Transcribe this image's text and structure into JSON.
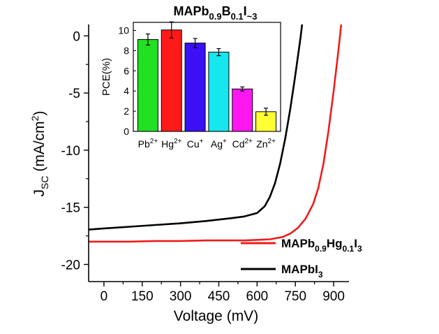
{
  "chart_data": [
    {
      "type": "line",
      "title": "",
      "xlabel": "Voltage (mV)",
      "ylabel_main": "J",
      "ylabel_sub": "SC",
      "ylabel_unit": "(mA/cm",
      "ylabel_unit_sup": "2",
      "ylabel_unit_end": ")",
      "xlim": [
        -60,
        960
      ],
      "ylim": [
        -21.5,
        1
      ],
      "xticks": [
        0,
        150,
        300,
        450,
        600,
        750,
        900
      ],
      "yticks": [
        0,
        -5,
        -10,
        -15,
        -20
      ],
      "legend_position": "bottom-right",
      "series": [
        {
          "name_parts": [
            {
              "t": "MAPb",
              "sub": false
            },
            {
              "t": "0.9",
              "sub": true
            },
            {
              "t": "Hg",
              "sub": false
            },
            {
              "t": "0.1",
              "sub": true
            },
            {
              "t": "I",
              "sub": false
            },
            {
              "t": "3",
              "sub": true
            }
          ],
          "color": "#ee1c1c",
          "x": [
            -60,
            0,
            100,
            200,
            300,
            400,
            500,
            550,
            600,
            650,
            700,
            730,
            760,
            790,
            820,
            840,
            860,
            880,
            900,
            920,
            940
          ],
          "y": [
            -18.0,
            -18.0,
            -18.0,
            -17.95,
            -17.95,
            -17.9,
            -17.9,
            -17.9,
            -17.85,
            -17.8,
            -17.6,
            -17.3,
            -16.8,
            -16.0,
            -14.7,
            -13.3,
            -11.2,
            -8.3,
            -4.8,
            -1.0,
            3.2
          ]
        },
        {
          "name_parts": [
            {
              "t": "MAPbI",
              "sub": false
            },
            {
              "t": "3",
              "sub": true
            }
          ],
          "color": "#000000",
          "x": [
            -60,
            0,
            100,
            200,
            300,
            400,
            500,
            550,
            600,
            630,
            650,
            670,
            690,
            710,
            730,
            750,
            770,
            790,
            800
          ],
          "y": [
            -16.95,
            -16.85,
            -16.7,
            -16.55,
            -16.4,
            -16.2,
            -15.95,
            -15.8,
            -15.5,
            -14.9,
            -14.1,
            -12.9,
            -11.2,
            -9.0,
            -6.4,
            -3.4,
            -0.2,
            3.5,
            5.5
          ]
        }
      ]
    },
    {
      "type": "bar",
      "title_parts": [
        {
          "t": "MAPb",
          "sub": false
        },
        {
          "t": "0.9",
          "sub": true
        },
        {
          "t": "B",
          "sub": false
        },
        {
          "t": "0.1",
          "sub": true
        },
        {
          "t": "I",
          "sub": false
        },
        {
          "t": "~3",
          "sub": true
        }
      ],
      "ylabel": "PCE(%)",
      "ylim": [
        0,
        10.8
      ],
      "yticks": [
        0,
        2,
        4,
        6,
        8,
        10
      ],
      "categories": [
        {
          "base": "Pb",
          "sup": "2+"
        },
        {
          "base": "Hg",
          "sup": "2+"
        },
        {
          "base": "Cu",
          "sup": "+"
        },
        {
          "base": "Ag",
          "sup": "+"
        },
        {
          "base": "Cd",
          "sup": "2+"
        },
        {
          "base": "Zn",
          "sup": "2+"
        }
      ],
      "values": [
        9.1,
        10.05,
        8.75,
        7.85,
        4.2,
        1.95
      ],
      "errors": [
        0.55,
        0.8,
        0.45,
        0.35,
        0.2,
        0.35
      ],
      "colors": [
        "#22e022",
        "#ff1a1a",
        "#3b10f5",
        "#16e6ee",
        "#ff17f2",
        "#ffff33"
      ]
    }
  ]
}
